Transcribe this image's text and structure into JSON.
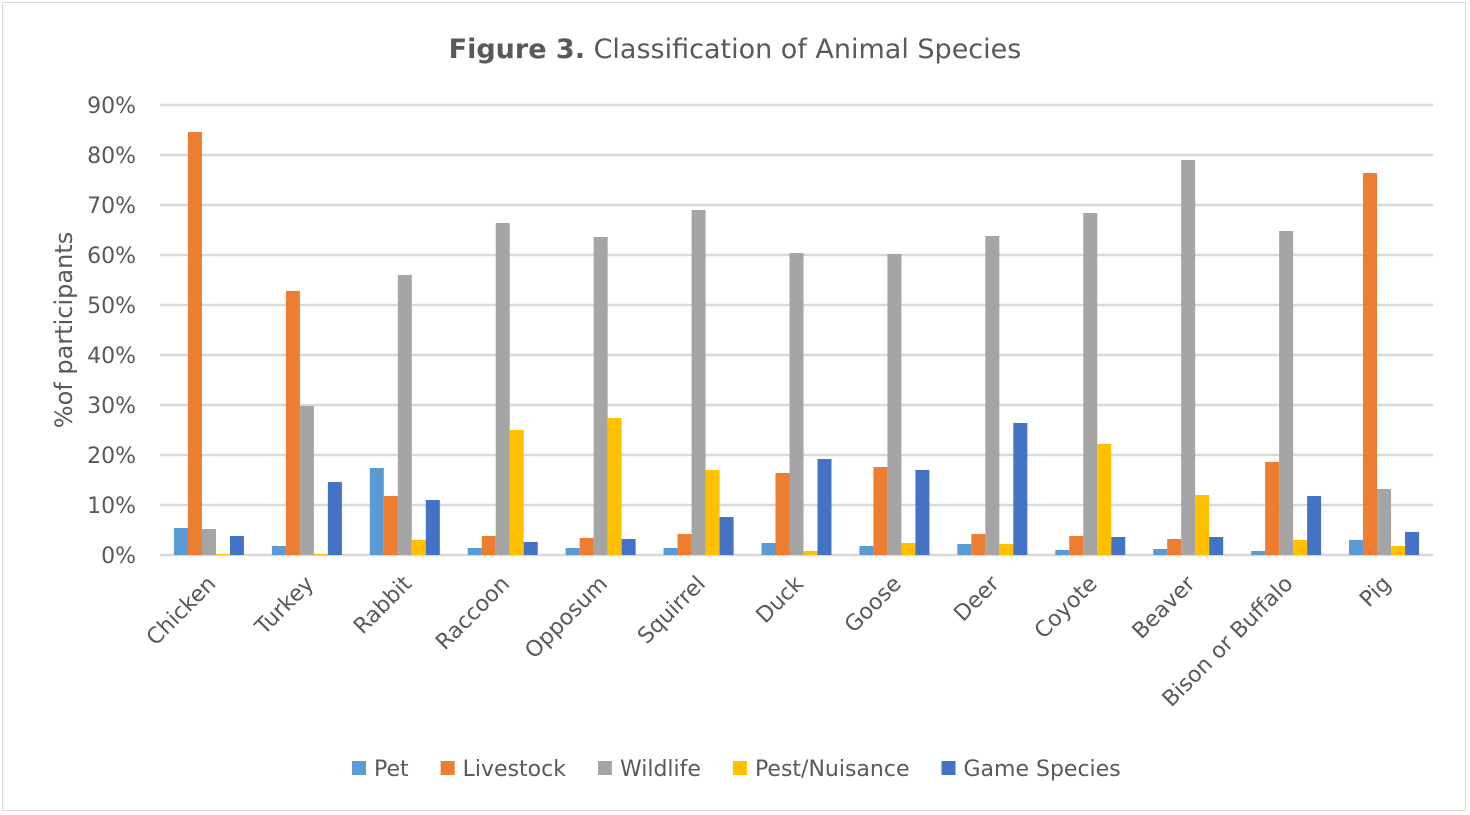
{
  "chart_data": {
    "type": "bar",
    "title_bold": "Figure 3.",
    "title": "Classification of Animal Species",
    "xlabel": "",
    "ylabel": "%of participants",
    "ylim": [
      0,
      90
    ],
    "y_ticks": [
      "0%",
      "10%",
      "20%",
      "30%",
      "40%",
      "50%",
      "60%",
      "70%",
      "80%",
      "90%"
    ],
    "grid": true,
    "legend_position": "bottom",
    "categories": [
      "Chicken",
      "Turkey",
      "Rabbit",
      "Raccoon",
      "Opposum",
      "Squirrel",
      "Duck",
      "Goose",
      "Deer",
      "Coyote",
      "Beaver",
      "Bison or Buffalo",
      "Pig"
    ],
    "series": [
      {
        "name": "Pet",
        "color": "#5b9bd5",
        "values": [
          5.4,
          1.8,
          17.4,
          1.4,
          1.4,
          1.4,
          2.4,
          1.8,
          2.2,
          1.0,
          1.2,
          0.8,
          3.0
        ]
      },
      {
        "name": "Livestock",
        "color": "#ed7d31",
        "values": [
          84.6,
          52.8,
          11.8,
          3.8,
          3.4,
          4.2,
          16.4,
          17.6,
          4.2,
          3.8,
          3.2,
          18.6,
          76.4
        ]
      },
      {
        "name": "Wildlife",
        "color": "#a5a5a5",
        "values": [
          5.2,
          29.8,
          56.0,
          66.4,
          63.6,
          69.0,
          60.4,
          60.2,
          63.8,
          68.4,
          79.0,
          64.8,
          13.2
        ]
      },
      {
        "name": "Pest/Nuisance",
        "color": "#ffc000",
        "values": [
          0.2,
          0.2,
          3.0,
          25.0,
          27.4,
          17.0,
          0.8,
          2.4,
          2.2,
          22.2,
          12.0,
          3.0,
          1.8
        ]
      },
      {
        "name": "Game Species",
        "color": "#4472c4",
        "values": [
          3.8,
          14.6,
          11.0,
          2.6,
          3.2,
          7.6,
          19.2,
          17.0,
          26.4,
          3.6,
          3.6,
          11.8,
          4.6
        ]
      }
    ]
  }
}
